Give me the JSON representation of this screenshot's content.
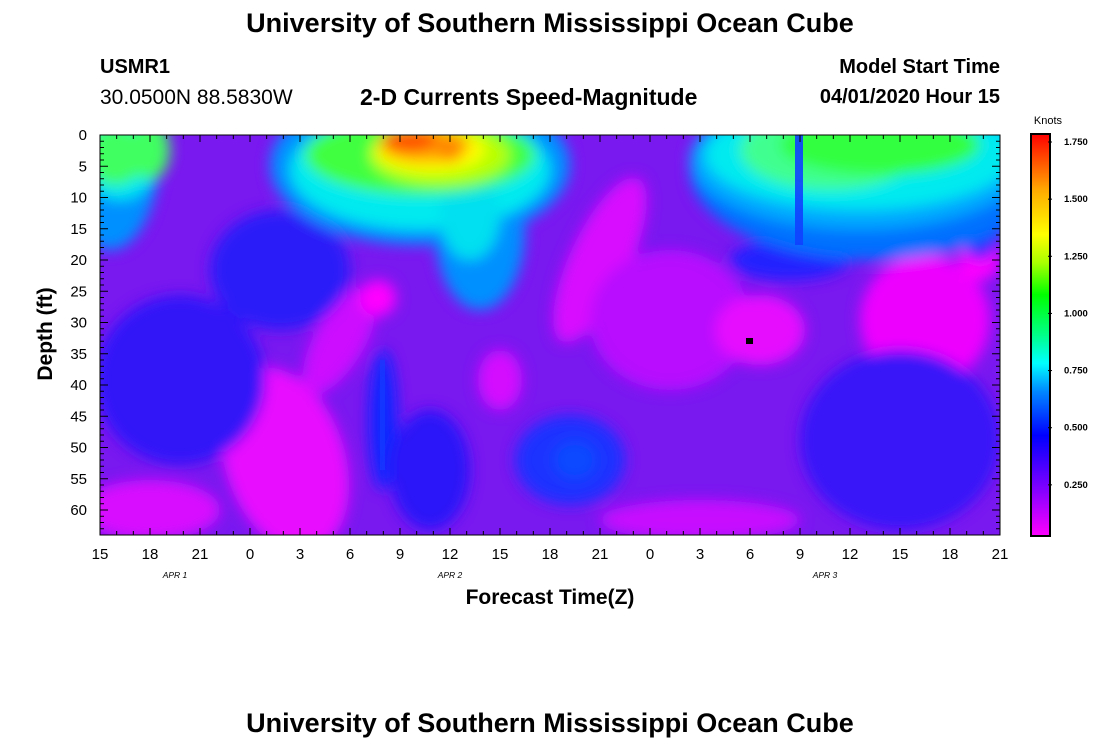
{
  "header": {
    "title": "University of Southern Mississippi Ocean Cube",
    "station": "USMR1",
    "coords": "30.0500N 88.5830W",
    "subtitle": "2-D Currents Speed-Magnitude",
    "model_start_label": "Model Start Time",
    "model_start_value": "04/01/2020 Hour 15"
  },
  "footer": {
    "title": "University of Southern Mississippi Ocean Cube"
  },
  "chart_data": {
    "type": "heatmap",
    "xlabel": "Forecast Time(Z)",
    "ylabel": "Depth (ft)",
    "x_tick_labels": [
      "15",
      "18",
      "21",
      "0",
      "3",
      "6",
      "9",
      "12",
      "15",
      "18",
      "21",
      "0",
      "3",
      "6",
      "9",
      "12",
      "15",
      "18",
      "21"
    ],
    "x_day_labels": [
      {
        "label": "APR 1",
        "at_tick": 1.5
      },
      {
        "label": "APR 2",
        "at_tick": 7
      },
      {
        "label": "APR 3",
        "at_tick": 14.5
      }
    ],
    "y_ticks": [
      0,
      5,
      10,
      15,
      20,
      25,
      30,
      35,
      40,
      45,
      50,
      55,
      60
    ],
    "y_range": [
      0,
      64
    ],
    "colorbar": {
      "unit": "Knots",
      "range": [
        0,
        1.75
      ],
      "tick_labels": [
        "1.750",
        "1.500",
        "1.250",
        "1.000",
        "0.750",
        "0.500",
        "0.250"
      ],
      "tick_values": [
        1.75,
        1.5,
        1.25,
        1.0,
        0.75,
        0.5,
        0.25
      ],
      "colors": [
        "#ff00ff",
        "#8800ff",
        "#0000ff",
        "#0088ff",
        "#00ffff",
        "#00ff88",
        "#00ff00",
        "#aaff00",
        "#ffff00",
        "#ffaa00",
        "#ff5500",
        "#ff0000"
      ]
    }
  }
}
